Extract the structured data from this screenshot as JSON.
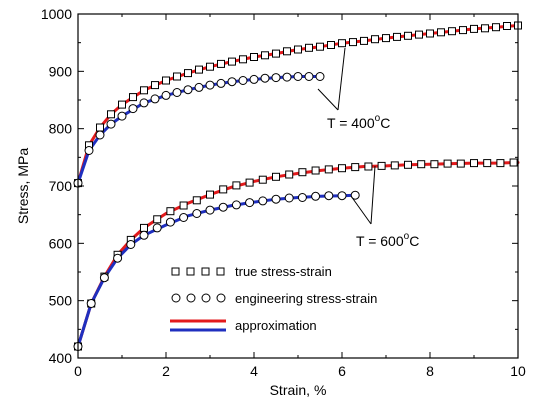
{
  "chart_data": {
    "type": "line",
    "xlabel": "Strain, %",
    "ylabel": "Stress, MPa",
    "xlim": [
      0,
      10
    ],
    "ylim": [
      400,
      1000
    ],
    "xticks": [
      "0",
      "2",
      "4",
      "6",
      "8",
      "10"
    ],
    "yticks": [
      "400",
      "500",
      "600",
      "700",
      "800",
      "900",
      "1000"
    ],
    "grid": false,
    "legend_position": "bottom-center",
    "legend": [
      {
        "label": "true stress-strain",
        "style": "squares"
      },
      {
        "label": "engineering stress-strain",
        "style": "circles"
      },
      {
        "label": "approximation",
        "style": "lines"
      }
    ],
    "annotations": [
      {
        "label": "T = 400",
        "superscript": "o",
        "unit": "C"
      },
      {
        "label": "T = 600",
        "superscript": "o",
        "unit": "C"
      }
    ],
    "series": [
      {
        "group": "T = 400 oC",
        "kind": "true",
        "marker": "square",
        "x": [
          0.0,
          0.25,
          0.5,
          0.75,
          1.0,
          1.25,
          1.5,
          1.75,
          2.0,
          2.25,
          2.5,
          2.75,
          3.0,
          3.25,
          3.5,
          3.75,
          4.0,
          4.25,
          4.5,
          4.75,
          5.0,
          5.25,
          5.5,
          5.75,
          6.0,
          6.25,
          6.5,
          6.75,
          7.0,
          7.25,
          7.5,
          7.75,
          8.0,
          8.25,
          8.5,
          8.75,
          9.0,
          9.25,
          9.5,
          9.75,
          10.0
        ],
        "y": [
          705,
          771,
          802,
          825,
          842,
          855,
          867,
          876,
          884,
          891,
          897,
          903,
          908,
          913,
          917,
          921,
          925,
          928,
          931,
          935,
          938,
          941,
          943,
          946,
          949,
          951,
          953,
          956,
          958,
          960,
          962,
          964,
          966,
          968,
          970,
          972,
          974,
          975,
          977,
          979,
          980
        ]
      },
      {
        "group": "T = 400 oC",
        "kind": "engineering",
        "marker": "circle",
        "x": [
          0.0,
          0.25,
          0.5,
          0.75,
          1.0,
          1.25,
          1.5,
          1.75,
          2.0,
          2.25,
          2.5,
          2.75,
          3.0,
          3.25,
          3.5,
          3.75,
          4.0,
          4.25,
          4.5,
          4.75,
          5.0,
          5.25,
          5.5
        ],
        "y": [
          705,
          762,
          789,
          808,
          822,
          835,
          845,
          852,
          858,
          863,
          868,
          872,
          876,
          879,
          882,
          884,
          886,
          888,
          889,
          890,
          891,
          891,
          891
        ]
      },
      {
        "group": "T = 600 oC",
        "kind": "true",
        "marker": "square",
        "x": [
          0.0,
          0.3,
          0.6,
          0.9,
          1.2,
          1.5,
          1.8,
          2.1,
          2.4,
          2.7,
          3.0,
          3.3,
          3.6,
          3.9,
          4.2,
          4.5,
          4.8,
          5.1,
          5.4,
          5.7,
          6.0,
          6.3,
          6.6,
          6.9,
          7.2,
          7.5,
          7.8,
          8.1,
          8.4,
          8.7,
          9.0,
          9.3,
          9.6,
          9.9
        ],
        "y": [
          420,
          495,
          542,
          580,
          606,
          627,
          642,
          656,
          666,
          675,
          685,
          694,
          701,
          706,
          711,
          716,
          720,
          724,
          727,
          729,
          731,
          733,
          734,
          735,
          736,
          737,
          738,
          738,
          739,
          739,
          740,
          740,
          740,
          741
        ]
      },
      {
        "group": "T = 600 oC",
        "kind": "engineering",
        "marker": "circle",
        "x": [
          0.0,
          0.3,
          0.6,
          0.9,
          1.2,
          1.5,
          1.8,
          2.1,
          2.4,
          2.7,
          3.0,
          3.3,
          3.6,
          3.9,
          4.2,
          4.5,
          4.8,
          5.1,
          5.4,
          5.7,
          6.0,
          6.3
        ],
        "y": [
          420,
          495,
          540,
          574,
          598,
          614,
          627,
          637,
          645,
          652,
          658,
          663,
          667,
          671,
          674,
          677,
          679,
          680,
          682,
          683,
          683,
          684
        ]
      },
      {
        "group": "T = 400 oC",
        "kind": "approximation",
        "color": "#e31a1c",
        "x": [
          0.0,
          0.25,
          0.5,
          0.75,
          1.0,
          1.5,
          2.0,
          2.5,
          3.0,
          3.5,
          4.0,
          4.5,
          5.0,
          5.5,
          6.0,
          6.5,
          7.0,
          7.5,
          8.0,
          8.5,
          9.0,
          9.5,
          10.0
        ],
        "y": [
          705,
          771,
          802,
          825,
          842,
          867,
          884,
          897,
          908,
          917,
          925,
          931,
          938,
          943,
          949,
          953,
          958,
          962,
          966,
          970,
          974,
          977,
          980
        ]
      },
      {
        "group": "T = 400 oC",
        "kind": "approximation",
        "color": "#1f2fbf",
        "x": [
          0.0,
          0.25,
          0.5,
          0.75,
          1.0,
          1.5,
          2.0,
          2.5,
          3.0,
          3.5,
          4.0,
          4.5,
          5.0,
          5.5
        ],
        "y": [
          705,
          762,
          789,
          808,
          822,
          845,
          858,
          868,
          876,
          882,
          886,
          889,
          891,
          891
        ]
      },
      {
        "group": "T = 600 oC",
        "kind": "approximation",
        "color": "#e31a1c",
        "x": [
          0.0,
          0.3,
          0.6,
          0.9,
          1.2,
          1.5,
          2.0,
          2.5,
          3.0,
          3.5,
          4.0,
          4.5,
          5.0,
          5.5,
          6.0,
          6.5,
          7.0,
          7.5,
          8.0,
          8.5,
          9.0,
          9.5,
          10.0
        ],
        "y": [
          420,
          495,
          542,
          580,
          606,
          627,
          652,
          670,
          685,
          698,
          708,
          716,
          722,
          727,
          731,
          734,
          735,
          737,
          738,
          739,
          740,
          740,
          741
        ]
      },
      {
        "group": "T = 600 oC",
        "kind": "approximation",
        "color": "#1f2fbf",
        "x": [
          0.0,
          0.3,
          0.6,
          0.9,
          1.2,
          1.5,
          2.0,
          2.5,
          3.0,
          3.5,
          4.0,
          4.5,
          5.0,
          5.5,
          6.0,
          6.3
        ],
        "y": [
          420,
          495,
          540,
          574,
          598,
          614,
          632,
          648,
          658,
          666,
          672,
          677,
          680,
          682,
          683,
          684
        ]
      }
    ]
  }
}
